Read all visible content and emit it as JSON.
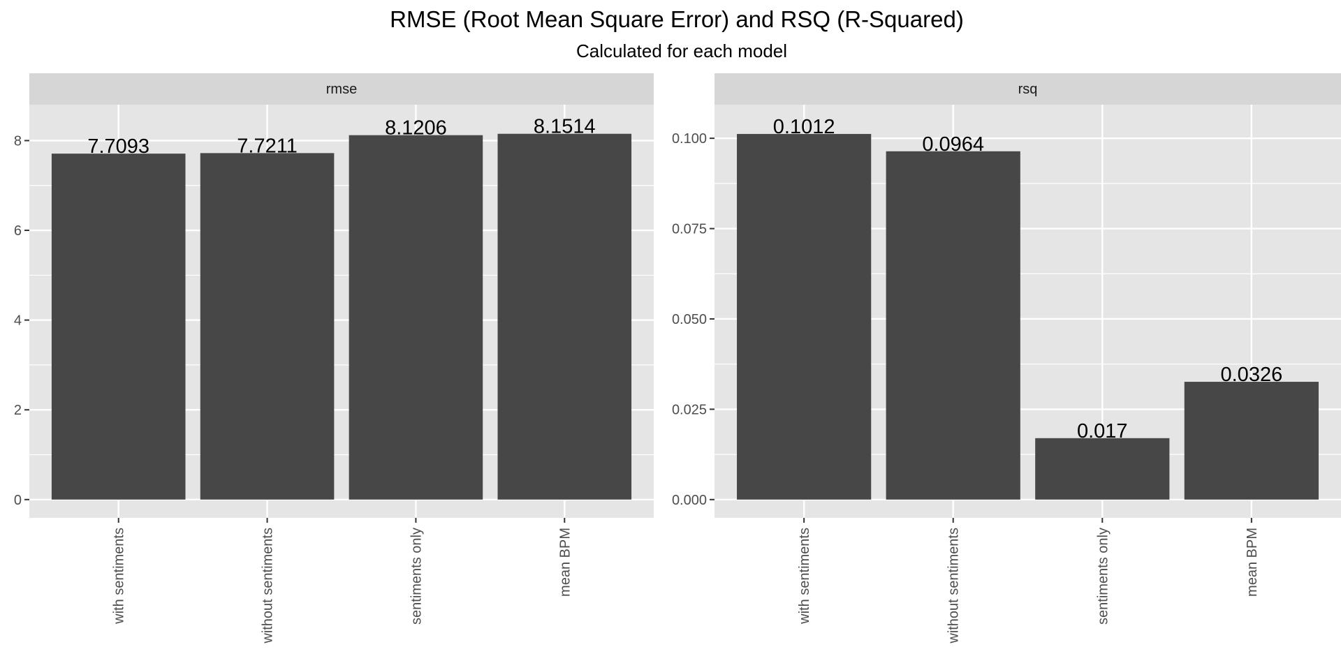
{
  "figure": {
    "title": "RMSE (Root Mean Square Error) and RSQ (R-Squared)",
    "subtitle": "Calculated for each model"
  },
  "colors": {
    "background": "#ffffff",
    "panel_background": "#e5e5e5",
    "strip_background": "#d6d6d6",
    "grid_line": "#ffffff",
    "bar_fill": "#474747",
    "tick_text": "#4d4d4d",
    "tick_mark": "#333333"
  },
  "chart_data": [
    {
      "type": "bar",
      "facet": "rmse",
      "categories": [
        "with sentiments",
        "without sentiments",
        "sentiments only",
        "mean BPM"
      ],
      "values": [
        7.7093,
        7.7211,
        8.1206,
        8.1514
      ],
      "data_labels": [
        "7.7093",
        "7.7211",
        "8.1206",
        "8.1514"
      ],
      "yticks": [
        0,
        2,
        4,
        6,
        8
      ],
      "ytick_labels": [
        "0",
        "2",
        "4",
        "6",
        "8"
      ],
      "ylim": [
        -0.4076,
        8.8
      ],
      "grid": true,
      "xlabel": "",
      "ylabel": ""
    },
    {
      "type": "bar",
      "facet": "rsq",
      "categories": [
        "with sentiments",
        "without sentiments",
        "sentiments only",
        "mean BPM"
      ],
      "values": [
        0.1012,
        0.0964,
        0.017,
        0.0326
      ],
      "data_labels": [
        "0.1012",
        "0.0964",
        "0.017",
        "0.0326"
      ],
      "yticks": [
        0,
        0.025,
        0.05,
        0.075,
        0.1
      ],
      "ytick_labels": [
        "0.000",
        "0.025",
        "0.050",
        "0.075",
        "0.100"
      ],
      "ylim": [
        -0.00506,
        0.1093
      ],
      "grid": true,
      "xlabel": "",
      "ylabel": ""
    }
  ]
}
